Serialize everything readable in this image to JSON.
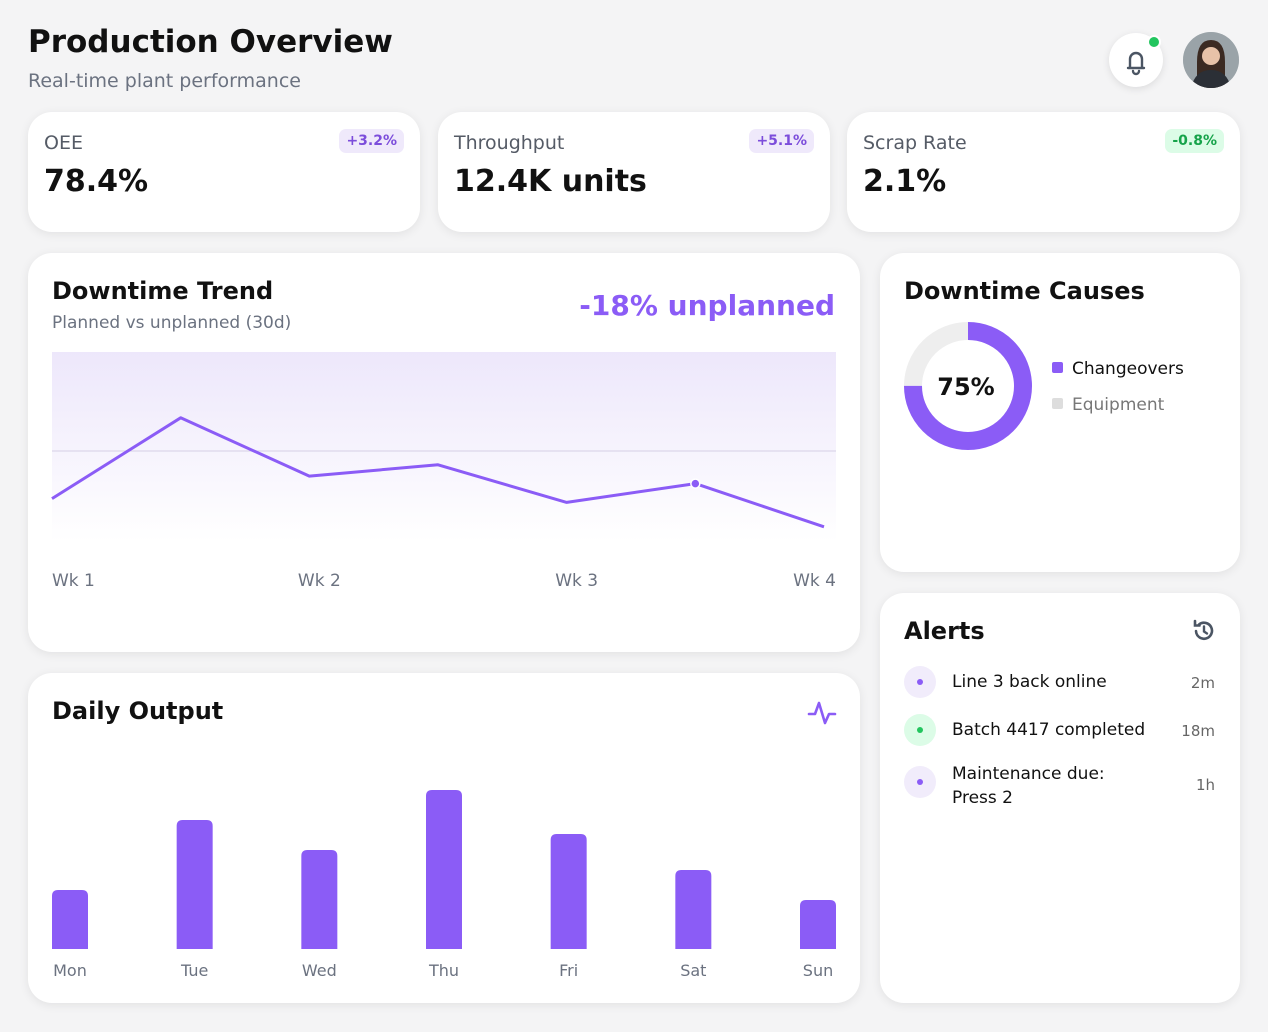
{
  "header": {
    "title": "Production Overview",
    "subtitle": "Real-time plant performance"
  },
  "kpis": [
    {
      "label": "OEE",
      "value": "78.4%",
      "change": "+3.2%"
    },
    {
      "label": "Throughput",
      "value": "12.4K units",
      "change": "+5.1%"
    },
    {
      "label": "Scrap Rate",
      "value": "2.1%",
      "change": "-0.8%"
    }
  ],
  "chart_data": [
    {
      "type": "line",
      "title": "Downtime Trend",
      "subtitle": "Planned vs unplanned (30d)",
      "annotation": "-18% unplanned",
      "categories": [
        "Wk 1",
        null,
        "Wk 2",
        null,
        "Wk 3",
        null,
        "Wk 4"
      ],
      "values": [
        22,
        65,
        34,
        40,
        20,
        30,
        7
      ],
      "color": "#8b5cf6",
      "ylim": [
        0,
        100
      ],
      "highlight": 5
    },
    {
      "type": "bar",
      "title": "Daily Output",
      "categories": [
        "Mon",
        "Tue",
        "Wed",
        "Thu",
        "Fri",
        "Sat",
        "Sun"
      ],
      "values": [
        59,
        129,
        99,
        159,
        115,
        79,
        49
      ],
      "color": "#8b5cf6",
      "ylim": [
        0,
        200
      ]
    },
    {
      "type": "pie",
      "title": "Downtime Causes",
      "categories": [
        "Changeovers",
        "Equipment"
      ],
      "values": [
        75,
        25
      ],
      "value_labels": [
        "75%",
        null
      ],
      "colors": [
        "#8b5cf6",
        "#eeeeee"
      ]
    }
  ],
  "alerts": {
    "title": "Alerts",
    "items": [
      {
        "text": "Line 3 back online",
        "time": "2m",
        "color": "#8b5cf6"
      },
      {
        "text": "Batch 4417 completed",
        "time": "18m",
        "color": "#22c55e"
      },
      {
        "text": "Maintenance due: Press 2",
        "time": "1h",
        "color": "#8b5cf6"
      }
    ]
  }
}
